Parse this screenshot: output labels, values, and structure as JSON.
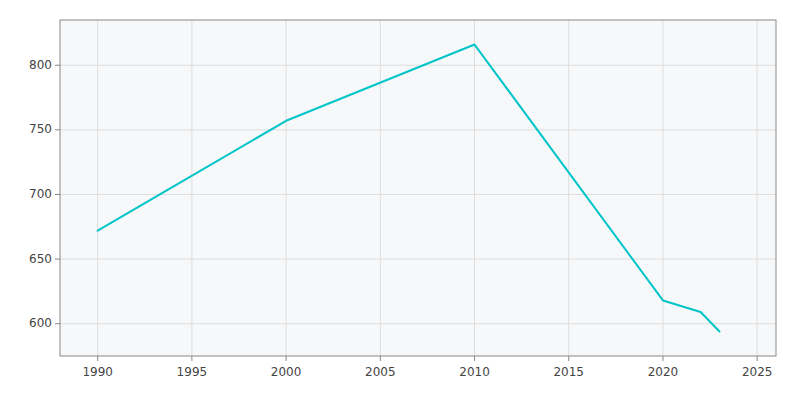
{
  "chart_data": {
    "type": "line",
    "x": [
      1990,
      2000,
      2010,
      2020,
      2022,
      2023
    ],
    "values": [
      672,
      757,
      816,
      618,
      609,
      594
    ],
    "color": "#00C5C8",
    "xlim": [
      1988,
      2026
    ],
    "ylim": [
      575,
      835
    ],
    "xticks": [
      1990,
      1995,
      2000,
      2005,
      2010,
      2015,
      2020,
      2025
    ],
    "yticks": [
      600,
      650,
      700,
      750,
      800
    ],
    "grid": true
  }
}
